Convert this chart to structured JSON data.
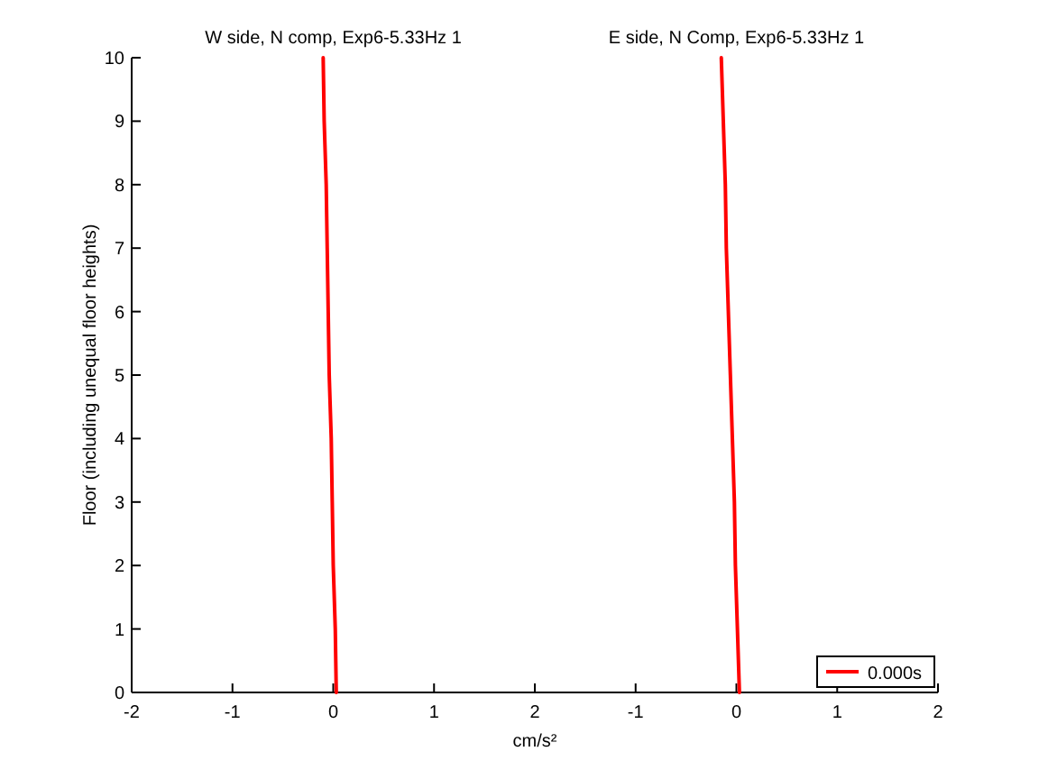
{
  "chart_data": [
    {
      "type": "line",
      "title": "W side, N comp, Exp6-5.33Hz 1",
      "xlabel": "cm/s²",
      "ylabel": "Floor (including unequal floor heights)",
      "xlim": [
        -2,
        2
      ],
      "xticks": [
        -2,
        -1,
        0,
        1,
        2
      ],
      "ylim": [
        0,
        10
      ],
      "yticks": [
        0,
        1,
        2,
        3,
        4,
        5,
        6,
        7,
        8,
        9,
        10
      ],
      "series": [
        {
          "color": "#ff0000",
          "x": [
            0.03,
            0.02,
            0.0,
            -0.01,
            -0.02,
            -0.04,
            -0.05,
            -0.06,
            -0.07,
            -0.09,
            -0.1
          ],
          "values": [
            0,
            1,
            2,
            3,
            4,
            5,
            6,
            7,
            8,
            9,
            10
          ]
        }
      ]
    },
    {
      "type": "line",
      "title": "E side, N Comp, Exp6-5.33Hz 1",
      "xlim": [
        -2,
        2
      ],
      "xticks": [
        {
          "value": -2,
          "label": null
        },
        -1,
        0,
        1,
        2
      ],
      "ylim": [
        0,
        10
      ],
      "tick_labels": "x",
      "legend": "bottom right",
      "series": [
        {
          "name": "0.000s",
          "color": "#ff0000",
          "x": [
            0.03,
            0.01,
            -0.01,
            -0.02,
            -0.04,
            -0.06,
            -0.08,
            -0.1,
            -0.11,
            -0.13,
            -0.15
          ],
          "values": [
            0,
            1,
            2,
            3,
            4,
            5,
            6,
            7,
            8,
            9,
            10
          ]
        }
      ]
    }
  ]
}
